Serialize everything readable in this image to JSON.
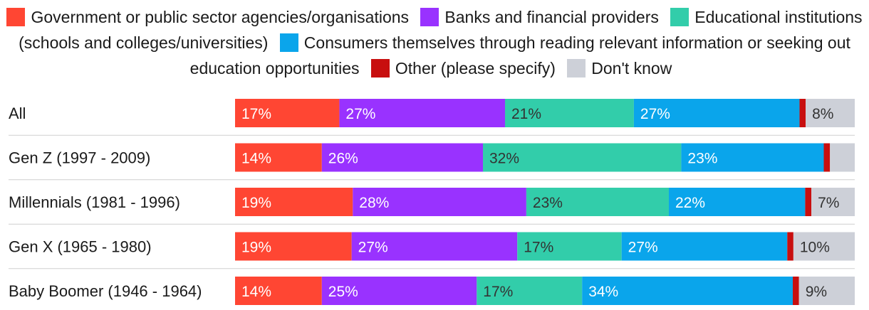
{
  "chart_data": {
    "type": "bar",
    "orientation": "horizontal",
    "stacked": true,
    "legend_position": "top",
    "categories": [
      "All",
      "Gen Z (1997 - 2009)",
      "Millennials (1981 - 1996)",
      "Gen X (1965 - 1980)",
      "Baby Boomer (1946 - 1964)"
    ],
    "series": [
      {
        "name": "Government or public sector agencies/organisations",
        "color": "#ff4633",
        "values": [
          17,
          14,
          19,
          19,
          14
        ],
        "labels": [
          "17%",
          "14%",
          "19%",
          "19%",
          "14%"
        ]
      },
      {
        "name": "Banks and financial providers",
        "color": "#9932ff",
        "values": [
          27,
          26,
          28,
          27,
          25
        ],
        "labels": [
          "27%",
          "26%",
          "28%",
          "27%",
          "25%"
        ]
      },
      {
        "name": "Educational institutions (schools and colleges/universities)",
        "color": "#32cdaa",
        "values": [
          21,
          32,
          23,
          17,
          17
        ],
        "labels": [
          "21%",
          "32%",
          "23%",
          "17%",
          "17%"
        ]
      },
      {
        "name": "Consumers themselves through reading relevant information or seeking out education opportunities",
        "color": "#0aa5eb",
        "values": [
          27,
          23,
          22,
          27,
          34
        ],
        "labels": [
          "27%",
          "23%",
          "22%",
          "27%",
          "34%"
        ]
      },
      {
        "name": "Other (please specify)",
        "color": "#c80f0f",
        "values": [
          1,
          1,
          1,
          1,
          1
        ],
        "labels": [
          "",
          "",
          "",
          "",
          ""
        ]
      },
      {
        "name": "Don't know",
        "color": "#cdd0d8",
        "values": [
          8,
          4,
          7,
          10,
          9
        ],
        "labels": [
          "8%",
          "",
          "7%",
          "10%",
          "9%"
        ]
      }
    ],
    "label_colors": [
      "#ffffff",
      "#ffffff",
      "#333333",
      "#ffffff",
      "#ffffff",
      "#333333"
    ]
  }
}
